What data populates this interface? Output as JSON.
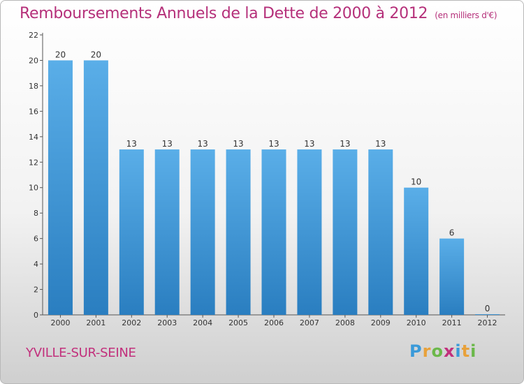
{
  "title": "Remboursements Annuels de la Dette de 2000 à 2012",
  "unit": "(en milliers d'€)",
  "commune": "YVILLE-SUR-SEINE",
  "logo": {
    "letters": [
      "P",
      "r",
      "o",
      "x",
      "i",
      "t",
      "i"
    ],
    "colors": [
      "#3a9ad9",
      "#e8a13a",
      "#6bb84a",
      "#c2307c",
      "#3a9ad9",
      "#e8a13a",
      "#6bb84a"
    ]
  },
  "colors": {
    "bar_top": "#5aaee8",
    "bar_bottom": "#2a7ec0",
    "title": "#b5307a"
  },
  "chart_data": {
    "type": "bar",
    "title": "Remboursements Annuels de la Dette de 2000 à 2012",
    "xlabel": "",
    "ylabel": "",
    "categories": [
      "2000",
      "2001",
      "2002",
      "2003",
      "2004",
      "2005",
      "2006",
      "2007",
      "2008",
      "2009",
      "2010",
      "2011",
      "2012"
    ],
    "values": [
      20,
      20,
      13,
      13,
      13,
      13,
      13,
      13,
      13,
      13,
      10,
      6,
      0
    ],
    "ylim": [
      0,
      22
    ],
    "yticks": [
      0,
      2,
      4,
      6,
      8,
      10,
      12,
      14,
      16,
      18,
      20,
      22
    ],
    "grid": false,
    "legend": "none"
  }
}
